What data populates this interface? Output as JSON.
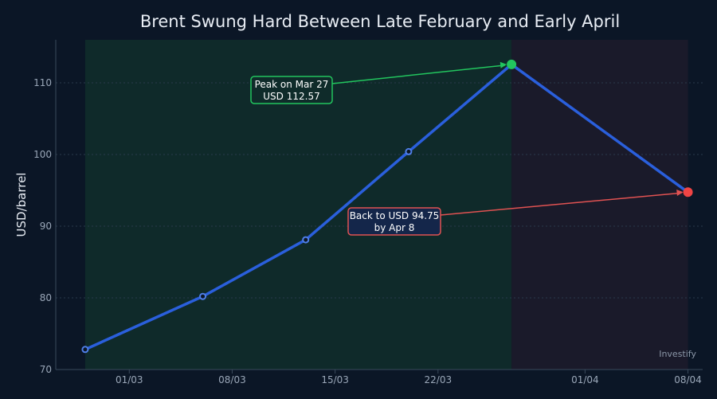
{
  "chart_data": {
    "type": "line",
    "title": "Brent Swung Hard Between Late February and Early April",
    "xlabel": "",
    "ylabel": "USD/barrel",
    "x_dates": [
      "2026-02-26",
      "2026-03-06",
      "2026-03-13",
      "2026-03-20",
      "2026-03-27",
      "2026-04-08"
    ],
    "series": [
      {
        "values": [
          72.8,
          80.2,
          88.1,
          100.4,
          112.57,
          94.75
        ],
        "color": "#2a5fdc"
      }
    ],
    "x_range": [
      "2026-02-24",
      "2026-04-09"
    ],
    "ylim": [
      70,
      116
    ],
    "y_ticks": [
      70,
      80,
      90,
      100,
      110
    ],
    "x_ticks": [
      {
        "date": "2026-03-01",
        "label": "01/03"
      },
      {
        "date": "2026-03-08",
        "label": "08/03"
      },
      {
        "date": "2026-03-15",
        "label": "15/03"
      },
      {
        "date": "2026-03-22",
        "label": "22/03"
      },
      {
        "date": "2026-04-01",
        "label": "01/04"
      },
      {
        "date": "2026-04-08",
        "label": "08/04"
      }
    ],
    "grid": true,
    "shaded_ranges": [
      {
        "from": "2026-02-26",
        "to": "2026-03-27",
        "color": "#0f2a2a"
      },
      {
        "from": "2026-03-27",
        "to": "2026-04-08",
        "color": "#1a1a2a"
      }
    ],
    "highlights": [
      {
        "date": "2026-03-27",
        "value": 112.57,
        "color": "#22c55e"
      },
      {
        "date": "2026-04-08",
        "value": 94.75,
        "color": "#ef4444"
      }
    ],
    "annotations": [
      {
        "lines": [
          "Peak on Mar 27",
          "USD 112.57"
        ],
        "target_date": "2026-03-27",
        "target_value": 112.57,
        "color": "#22c55e",
        "fill": "#0f2b2a"
      },
      {
        "lines": [
          "Back to USD 94.75",
          "by Apr 8"
        ],
        "target_date": "2026-04-08",
        "target_value": 94.75,
        "color": "#e05252",
        "fill": "#14264a"
      }
    ],
    "source": "Investify"
  }
}
